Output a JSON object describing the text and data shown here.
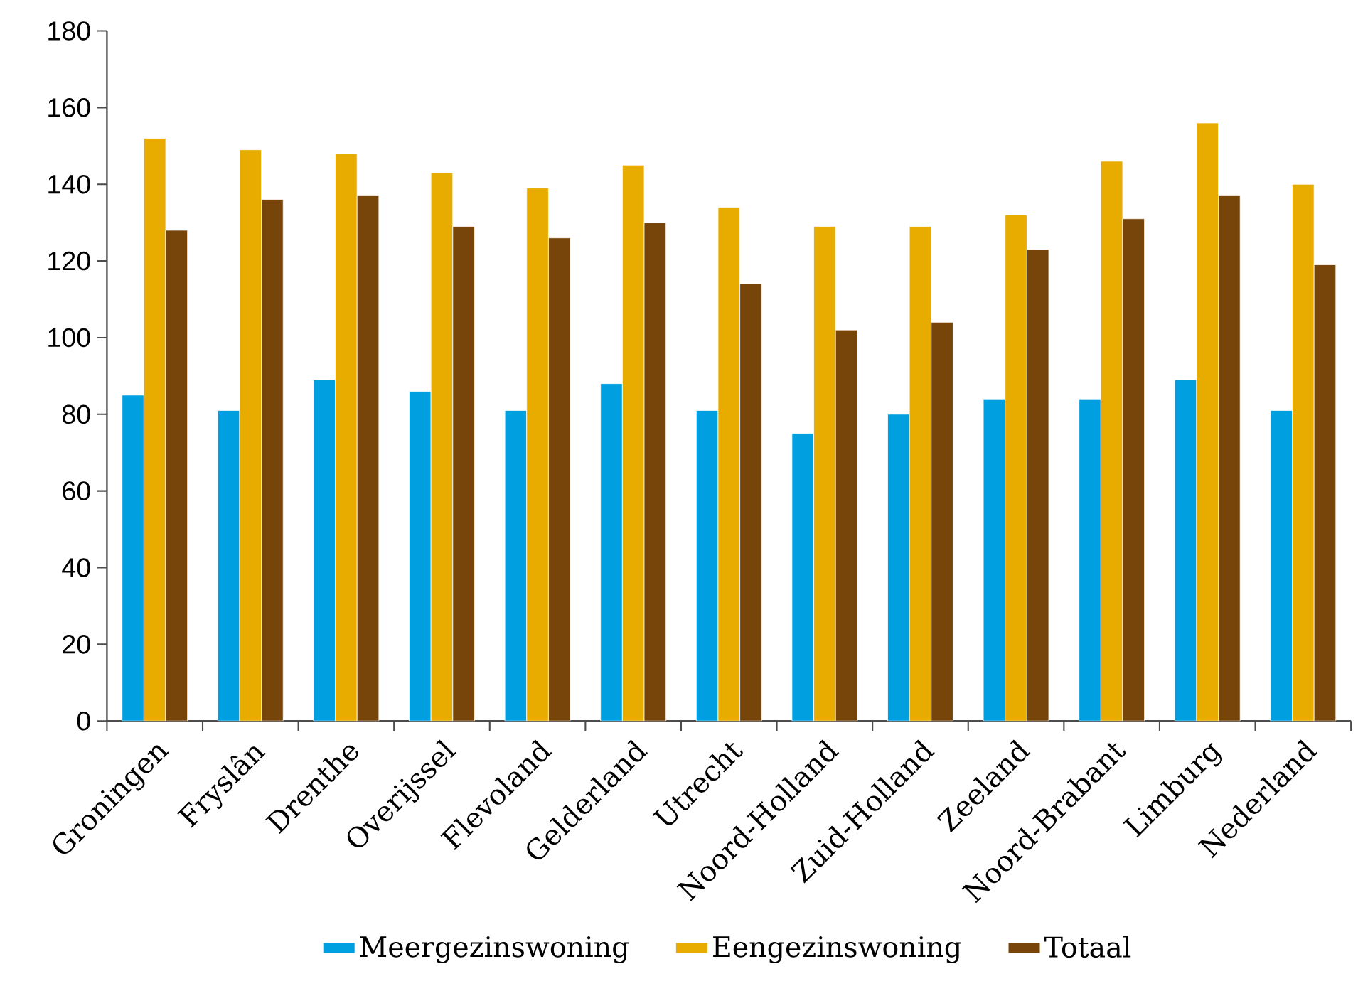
{
  "chart_data": {
    "type": "bar",
    "categories": [
      "Groningen",
      "Fryslân",
      "Drenthe",
      "Overijssel",
      "Flevoland",
      "Gelderland",
      "Utrecht",
      "Noord-Holland",
      "Zuid-Holland",
      "Zeeland",
      "Noord-Brabant",
      "Limburg",
      "Nederland"
    ],
    "series": [
      {
        "name": "Meergezinswoning",
        "color": "#009fe0",
        "values": [
          85,
          81,
          89,
          86,
          81,
          88,
          81,
          75,
          80,
          84,
          84,
          89,
          81
        ]
      },
      {
        "name": "Eengezinswoning",
        "color": "#e8ab00",
        "values": [
          152,
          149,
          148,
          143,
          139,
          145,
          134,
          129,
          129,
          132,
          146,
          156,
          140
        ]
      },
      {
        "name": "Totaal",
        "color": "#77450a",
        "values": [
          128,
          136,
          137,
          129,
          126,
          130,
          114,
          102,
          104,
          123,
          131,
          137,
          119
        ]
      }
    ],
    "ylim": [
      0,
      180
    ],
    "yticks": [
      0,
      20,
      40,
      60,
      80,
      100,
      120,
      140,
      160,
      180
    ],
    "legend": "bottom"
  }
}
